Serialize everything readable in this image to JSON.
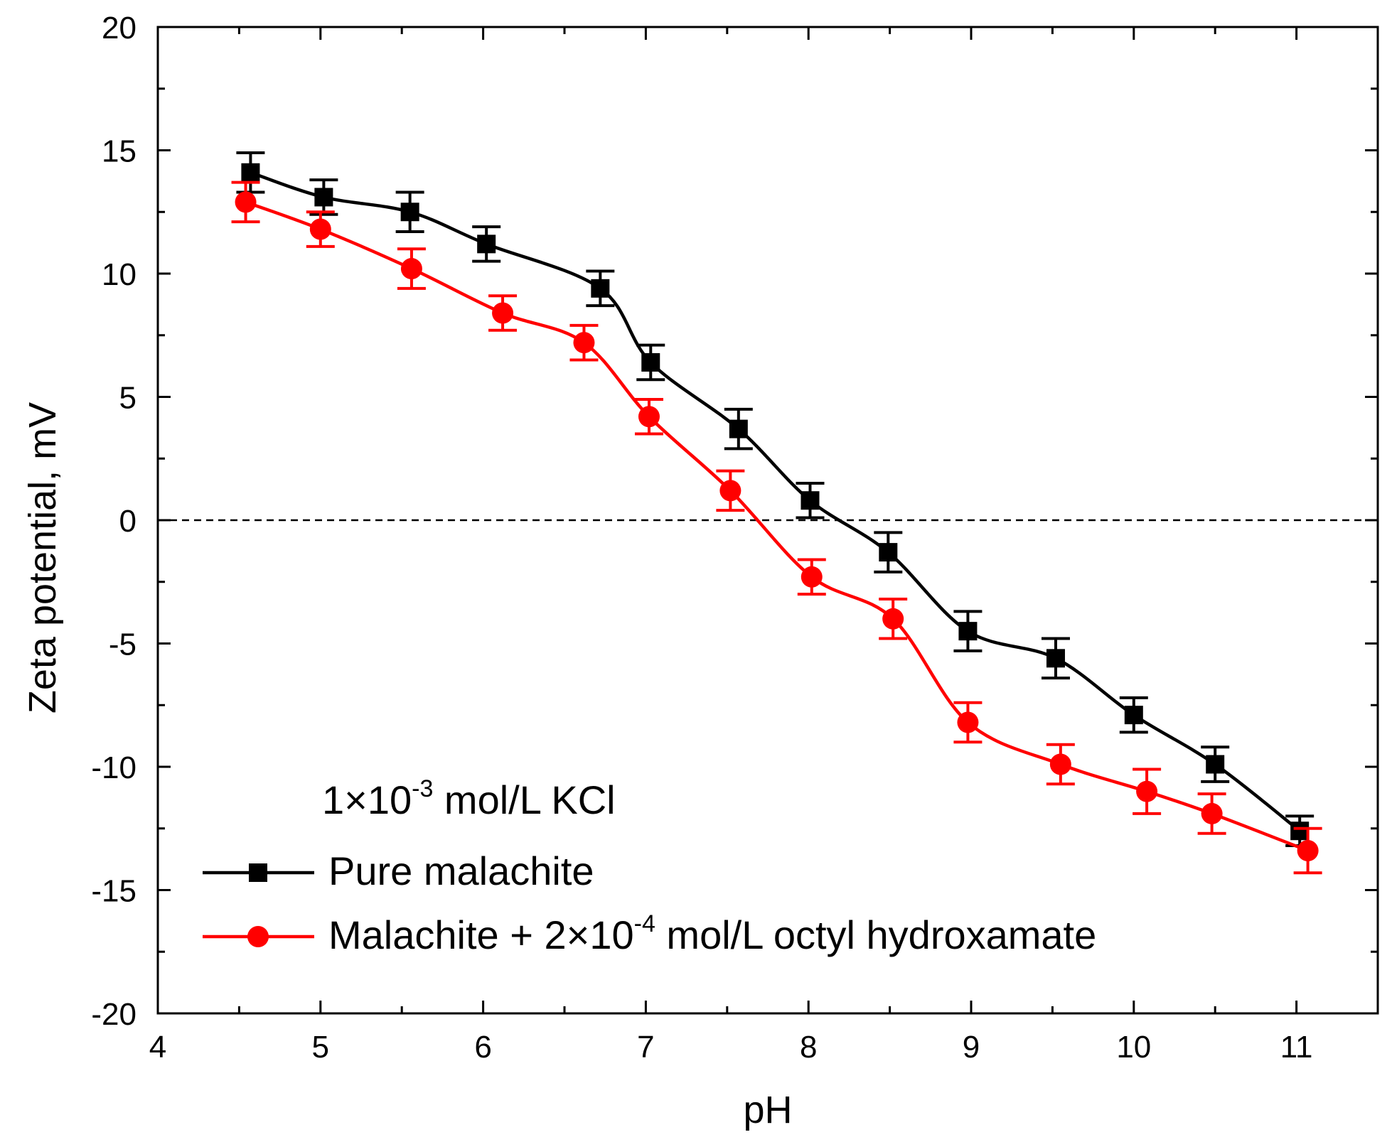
{
  "chart_data": {
    "type": "line",
    "xlabel": "pH",
    "ylabel": "Zeta potential, mV",
    "xlim": [
      4,
      11.5
    ],
    "ylim": [
      -20,
      20
    ],
    "xticks": [
      4,
      5,
      6,
      7,
      8,
      9,
      10,
      11
    ],
    "yticks": [
      -20,
      -15,
      -10,
      -5,
      0,
      5,
      10,
      15,
      20
    ],
    "xtick_labels": [
      "4",
      "5",
      "6",
      "7",
      "8",
      "9",
      "10",
      "11"
    ],
    "ytick_labels": [
      "-20",
      "-15",
      "-10",
      "-5",
      "0",
      "5",
      "10",
      "15",
      "20"
    ],
    "reference_line": {
      "y": 0,
      "style": "dashed"
    },
    "annotation": {
      "prefix": "1×10",
      "superscript": "-3",
      "suffix": " mol/L KCl"
    },
    "series": [
      {
        "name": "Pure malachite",
        "legend": {
          "prefix": "Pure malachite",
          "superscript": "",
          "suffix": ""
        },
        "color": "#000000",
        "marker": "square",
        "x": [
          4.57,
          5.02,
          5.55,
          6.02,
          6.72,
          7.03,
          7.57,
          8.01,
          8.49,
          8.98,
          9.52,
          10.0,
          10.5,
          11.02
        ],
        "y": [
          14.1,
          13.1,
          12.5,
          11.2,
          9.4,
          6.4,
          3.7,
          0.8,
          -1.3,
          -4.5,
          -5.6,
          -7.9,
          -9.9,
          -12.6
        ],
        "err": [
          0.8,
          0.7,
          0.8,
          0.7,
          0.7,
          0.7,
          0.8,
          0.7,
          0.8,
          0.8,
          0.8,
          0.7,
          0.7,
          0.6
        ]
      },
      {
        "name": "Malachite + 2×10-4 mol/L octyl hydroxamate",
        "legend": {
          "prefix": "Malachite + 2×10",
          "superscript": "-4",
          "suffix": " mol/L octyl hydroxamate"
        },
        "color": "#ff0000",
        "marker": "circle",
        "x": [
          4.54,
          5.0,
          5.56,
          6.12,
          6.62,
          7.02,
          7.52,
          8.02,
          8.52,
          8.98,
          9.55,
          10.08,
          10.48,
          11.07
        ],
        "y": [
          12.9,
          11.8,
          10.2,
          8.4,
          7.2,
          4.2,
          1.2,
          -2.3,
          -4.0,
          -8.2,
          -9.9,
          -11.0,
          -11.9,
          -13.4
        ],
        "err": [
          0.8,
          0.7,
          0.8,
          0.7,
          0.7,
          0.7,
          0.8,
          0.7,
          0.8,
          0.8,
          0.8,
          0.9,
          0.8,
          0.9
        ]
      }
    ]
  }
}
